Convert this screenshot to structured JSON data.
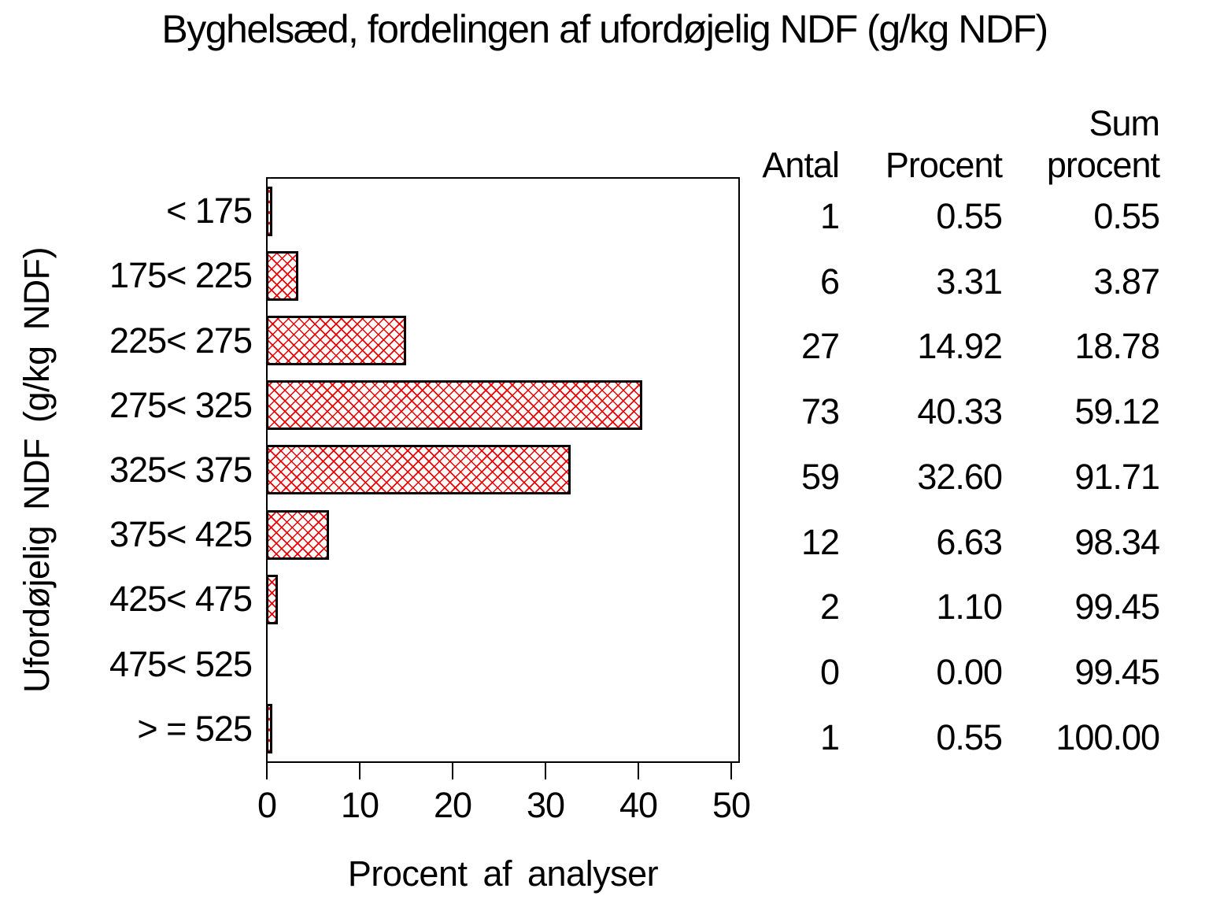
{
  "title": "Byghelsæd, fordelingen af ufordøjelig NDF (g/kg NDF)",
  "chart_data": {
    "type": "bar",
    "orientation": "horizontal",
    "title": "Byghelsæd, fordelingen af ufordøjelig NDF (g/kg NDF)",
    "xlabel": "Procent af analyser",
    "ylabel": "Ufordøjelig NDF (g/kg NDF)",
    "xlim": [
      0,
      50
    ],
    "x_ticks": [
      "0",
      "10",
      "20",
      "30",
      "40",
      "50"
    ],
    "grid": false,
    "legend": false,
    "bar_pattern": "red-crosshatch",
    "categories": [
      "< 175",
      "175< 225",
      "225< 275",
      "275< 325",
      "325< 375",
      "375< 425",
      "425< 475",
      "475< 525",
      "> = 525"
    ],
    "values": [
      0.55,
      3.31,
      14.92,
      40.33,
      32.6,
      6.63,
      1.1,
      0.0,
      0.55
    ]
  },
  "table": {
    "headers": [
      "Antal",
      "Procent",
      "Sum\nprocent"
    ],
    "rows": [
      [
        "1",
        "0.55",
        "0.55"
      ],
      [
        "6",
        "3.31",
        "3.87"
      ],
      [
        "27",
        "14.92",
        "18.78"
      ],
      [
        "73",
        "40.33",
        "59.12"
      ],
      [
        "59",
        "32.60",
        "91.71"
      ],
      [
        "12",
        "6.63",
        "98.34"
      ],
      [
        "2",
        "1.10",
        "99.45"
      ],
      [
        "0",
        "0.00",
        "99.45"
      ],
      [
        "1",
        "0.55",
        "100.00"
      ]
    ]
  },
  "colors": {
    "background": "#ffffff",
    "text": "#000000",
    "axis": "#000000",
    "bar_border": "#000000",
    "bar_hatch": "#ee0000"
  }
}
